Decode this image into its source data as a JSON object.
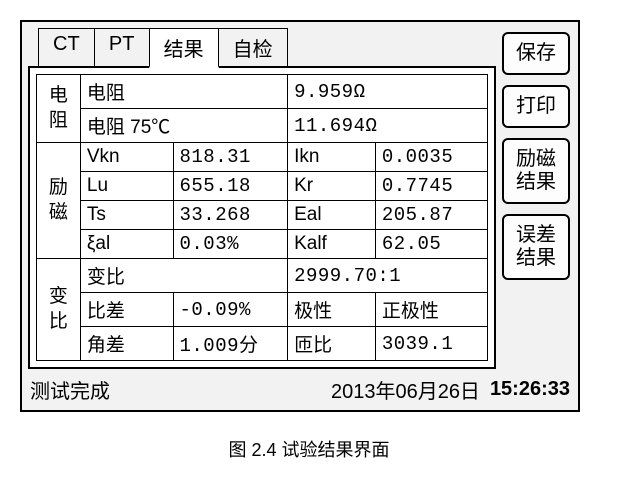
{
  "tabs": {
    "ct": "CT",
    "pt": "PT",
    "result": "结果",
    "selftest": "自检"
  },
  "buttons": {
    "save": "保存",
    "print": "打印",
    "exc": "励磁\n结果",
    "err": "误差\n结果"
  },
  "section_labels": {
    "res": "电\n阻",
    "exc": "励\n磁",
    "ratio": "变\n比"
  },
  "res": {
    "r_label": "电阻",
    "r_val": " 9.959Ω",
    "r75_label": "电阻 75℃",
    "r75_val": "11.694Ω"
  },
  "exc": {
    "vkn_l": "Vkn",
    "vkn_v": "818.31",
    "ikn_l": "Ikn",
    "ikn_v": "0.0035",
    "lu_l": "Lu",
    "lu_v": "655.18",
    "kr_l": "Kr",
    "kr_v": "0.7745",
    "ts_l": "Ts",
    "ts_v": "33.268",
    "eal_l": "Eal",
    "eal_v": "205.87",
    "xal_l": "ξal",
    "xal_v": "0.03%",
    "kalf_l": "Kalf",
    "kalf_v": "62.05"
  },
  "ratio": {
    "bl_l": "变比",
    "bl_v": " 2999.70:1",
    "bc_l": "比差",
    "bc_v": "-0.09%",
    "jx_l": "极性",
    "jx_v": "正极性",
    "jc_l": "角差",
    "jc_v": "1.009分",
    "zb_l": "匝比",
    "zb_v": "3039.1"
  },
  "status": {
    "msg": "测试完成",
    "date": "2013年06月26日",
    "time": "15:26:33"
  },
  "caption": "图 2.4  试验结果界面"
}
